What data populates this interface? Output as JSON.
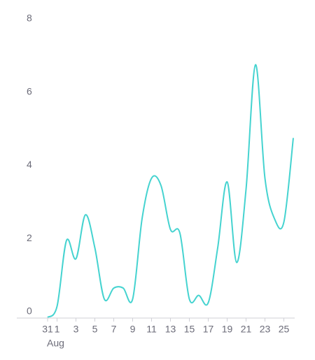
{
  "chart_data": {
    "type": "line",
    "categories": [
      "31",
      "1",
      null,
      "3",
      null,
      "5",
      null,
      "7",
      null,
      "9",
      null,
      "11",
      null,
      "13",
      null,
      "15",
      null,
      "17",
      null,
      "19",
      null,
      "21",
      null,
      "23",
      null,
      "25",
      null
    ],
    "month_label": "Aug",
    "series": [
      {
        "color": "#45d3d0",
        "values": [
          0,
          0.3,
          2.1,
          1.6,
          2.8,
          1.9,
          0.5,
          0.8,
          0.8,
          0.5,
          2.7,
          3.8,
          3.6,
          2.4,
          2.3,
          0.5,
          0.6,
          0.4,
          1.9,
          3.7,
          1.5,
          3.5,
          6.9,
          3.8,
          2.7,
          2.6,
          4.9
        ]
      }
    ],
    "ylim": [
      0,
      8
    ],
    "yticks": [
      0,
      2,
      4,
      6,
      8
    ],
    "grid": false
  }
}
